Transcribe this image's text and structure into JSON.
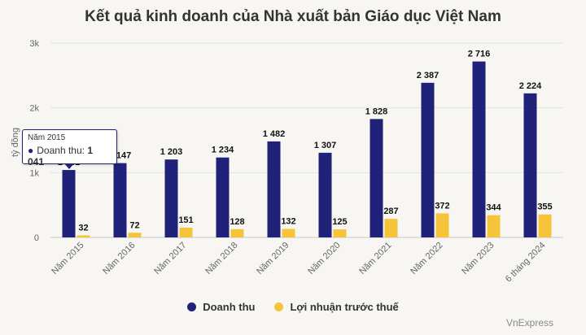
{
  "chart_data": {
    "type": "bar",
    "title": "Kết quả kinh doanh của Nhà xuất bản Giáo dục Việt Nam",
    "ylabel": "tỷ đồng",
    "xlabel": "",
    "ylim": [
      0,
      3000
    ],
    "yticks": [
      0,
      1000,
      2000,
      3000
    ],
    "ytick_labels": [
      "0",
      "1k",
      "2k",
      "3k"
    ],
    "grid": true,
    "legend_position": "bottom",
    "categories": [
      "Năm 2015",
      "Năm 2016",
      "Năm 2017",
      "Năm 2018",
      "Năm 2019",
      "Năm 2020",
      "Năm 2021",
      "Năm 2022",
      "Năm 2023",
      "6 tháng 2024"
    ],
    "series": [
      {
        "name": "Doanh thu",
        "color": "#1f2278",
        "values": [
          1041,
          1147,
          1203,
          1234,
          1482,
          1307,
          1828,
          2387,
          2716,
          2224
        ],
        "labels": [
          "1 041",
          "1 147",
          "1 203",
          "1 234",
          "1 482",
          "1 307",
          "1 828",
          "2 387",
          "2 716",
          "2 224"
        ]
      },
      {
        "name": "Lợi nhuận trước thuế",
        "color": "#f5c43b",
        "values": [
          32,
          72,
          151,
          128,
          132,
          125,
          287,
          372,
          344,
          355
        ],
        "labels": [
          "32",
          "72",
          "151",
          "128",
          "132",
          "125",
          "287",
          "372",
          "344",
          "355"
        ]
      }
    ]
  },
  "tooltip": {
    "header": "Năm 2015",
    "series_name": "Doanh thu:",
    "value": "1 041"
  },
  "credit": "VnExpress"
}
